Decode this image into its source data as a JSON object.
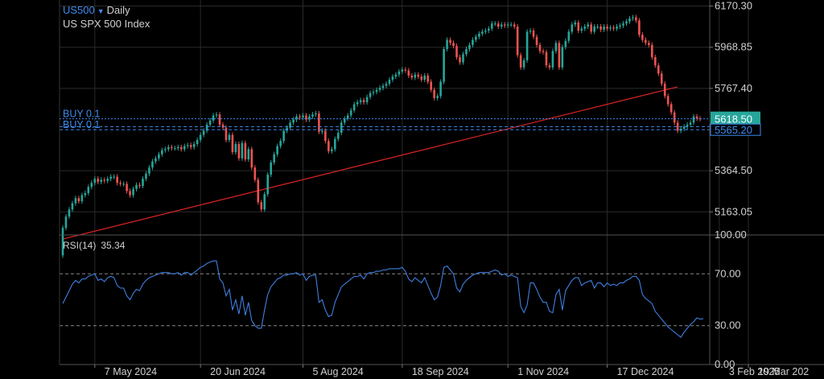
{
  "header": {
    "symbol": "US500",
    "timeframe": "Daily",
    "instrument_name": "US SPX 500 Index"
  },
  "colors": {
    "up": "#26a69a",
    "down": "#ef5350",
    "ma": "#e02424",
    "rsi": "#3f7fe0",
    "order_line": "#3f8cf0",
    "price_tag": "#26a69a",
    "grid": "#2a2a2a"
  },
  "price_axis_labels": [
    "6170.30",
    "5968.85",
    "5767.40",
    "5364.50",
    "5163.05"
  ],
  "price_tag": "5618.50",
  "order_tag": "5565.20",
  "orders": [
    {
      "label": "BUY 0.1",
      "price": 5618.5
    },
    {
      "label": "BUY 0.1",
      "price": 5565.2
    },
    {
      "label": "BUY 0.1",
      "price": 5580.0
    }
  ],
  "rsi_panel": {
    "title": "RSI(14)",
    "value": "35.34",
    "axis_labels": [
      "100.00",
      "70.00",
      "30.00",
      "0.00"
    ],
    "levels": [
      70,
      30
    ]
  },
  "x_axis_labels": [
    "7 May 2024",
    "20 Jun 2024",
    "5 Aug 2024",
    "18 Sep 2024",
    "1 Nov 2024",
    "17 Dec 2024",
    "3 Feb 2025",
    "19 Mar 202"
  ],
  "chart_data": {
    "type": "candlestick",
    "ylim": [
      5050,
      6200
    ],
    "rsi_ylim": [
      0,
      100
    ],
    "ma_line": {
      "start": [
        0,
        5030
      ],
      "end": [
        192,
        5775
      ]
    },
    "candles": [
      [
        4950,
        5085
      ],
      [
        5085,
        5140
      ],
      [
        5140,
        5175
      ],
      [
        5175,
        5205
      ],
      [
        5205,
        5230
      ],
      [
        5230,
        5215
      ],
      [
        5215,
        5245
      ],
      [
        5245,
        5255
      ],
      [
        5255,
        5285
      ],
      [
        5285,
        5305
      ],
      [
        5305,
        5325
      ],
      [
        5325,
        5310
      ],
      [
        5310,
        5320
      ],
      [
        5320,
        5315
      ],
      [
        5315,
        5325
      ],
      [
        5325,
        5335
      ],
      [
        5335,
        5335
      ],
      [
        5335,
        5305
      ],
      [
        5305,
        5300
      ],
      [
        5300,
        5300
      ],
      [
        5300,
        5265
      ],
      [
        5265,
        5245
      ],
      [
        5245,
        5275
      ],
      [
        5275,
        5295
      ],
      [
        5295,
        5290
      ],
      [
        5290,
        5325
      ],
      [
        5325,
        5350
      ],
      [
        5350,
        5380
      ],
      [
        5380,
        5410
      ],
      [
        5410,
        5425
      ],
      [
        5425,
        5445
      ],
      [
        5445,
        5465
      ],
      [
        5465,
        5470
      ],
      [
        5470,
        5480
      ],
      [
        5480,
        5475
      ],
      [
        5475,
        5475
      ],
      [
        5475,
        5480
      ],
      [
        5480,
        5470
      ],
      [
        5470,
        5485
      ],
      [
        5485,
        5490
      ],
      [
        5490,
        5480
      ],
      [
        5480,
        5495
      ],
      [
        5495,
        5515
      ],
      [
        5515,
        5540
      ],
      [
        5540,
        5560
      ],
      [
        5560,
        5590
      ],
      [
        5590,
        5610
      ],
      [
        5610,
        5635
      ],
      [
        5635,
        5640
      ],
      [
        5640,
        5590
      ],
      [
        5590,
        5575
      ],
      [
        5575,
        5515
      ],
      [
        5515,
        5540
      ],
      [
        5540,
        5455
      ],
      [
        5455,
        5495
      ],
      [
        5495,
        5425
      ],
      [
        5425,
        5500
      ],
      [
        5500,
        5420
      ],
      [
        5420,
        5470
      ],
      [
        5470,
        5380
      ],
      [
        5380,
        5320
      ],
      [
        5320,
        5210
      ],
      [
        5210,
        5175
      ],
      [
        5175,
        5250
      ],
      [
        5250,
        5345
      ],
      [
        5345,
        5405
      ],
      [
        5405,
        5445
      ],
      [
        5445,
        5485
      ],
      [
        5485,
        5510
      ],
      [
        5510,
        5560
      ],
      [
        5560,
        5575
      ],
      [
        5575,
        5600
      ],
      [
        5600,
        5615
      ],
      [
        5615,
        5630
      ],
      [
        5630,
        5625
      ],
      [
        5625,
        5635
      ],
      [
        5635,
        5615
      ],
      [
        5615,
        5630
      ],
      [
        5630,
        5640
      ],
      [
        5640,
        5645
      ],
      [
        5645,
        5555
      ],
      [
        5555,
        5560
      ],
      [
        5560,
        5510
      ],
      [
        5510,
        5460
      ],
      [
        5460,
        5470
      ],
      [
        5470,
        5520
      ],
      [
        5520,
        5550
      ],
      [
        5550,
        5600
      ],
      [
        5600,
        5620
      ],
      [
        5620,
        5635
      ],
      [
        5635,
        5660
      ],
      [
        5660,
        5690
      ],
      [
        5690,
        5700
      ],
      [
        5700,
        5710
      ],
      [
        5710,
        5700
      ],
      [
        5700,
        5725
      ],
      [
        5725,
        5745
      ],
      [
        5745,
        5750
      ],
      [
        5750,
        5760
      ],
      [
        5760,
        5770
      ],
      [
        5770,
        5780
      ],
      [
        5780,
        5790
      ],
      [
        5790,
        5810
      ],
      [
        5810,
        5825
      ],
      [
        5825,
        5835
      ],
      [
        5835,
        5850
      ],
      [
        5850,
        5860
      ],
      [
        5860,
        5855
      ],
      [
        5855,
        5830
      ],
      [
        5830,
        5820
      ],
      [
        5820,
        5835
      ],
      [
        5835,
        5825
      ],
      [
        5825,
        5810
      ],
      [
        5810,
        5830
      ],
      [
        5830,
        5800
      ],
      [
        5800,
        5760
      ],
      [
        5760,
        5720
      ],
      [
        5720,
        5730
      ],
      [
        5730,
        5800
      ],
      [
        5800,
        5960
      ],
      [
        5960,
        6005
      ],
      [
        6005,
        5990
      ],
      [
        5990,
        5975
      ],
      [
        5975,
        5920
      ],
      [
        5920,
        5895
      ],
      [
        5895,
        5935
      ],
      [
        5935,
        5960
      ],
      [
        5960,
        5980
      ],
      [
        5980,
        6005
      ],
      [
        6005,
        6020
      ],
      [
        6020,
        6035
      ],
      [
        6035,
        6045
      ],
      [
        6045,
        6050
      ],
      [
        6050,
        6060
      ],
      [
        6060,
        6085
      ],
      [
        6085,
        6085
      ],
      [
        6085,
        6070
      ],
      [
        6070,
        6080
      ],
      [
        6080,
        6075
      ],
      [
        6075,
        6080
      ],
      [
        6080,
        6080
      ],
      [
        6080,
        6070
      ],
      [
        6070,
        5930
      ],
      [
        5930,
        5870
      ],
      [
        5870,
        5905
      ],
      [
        5905,
        6045
      ],
      [
        6045,
        6050
      ],
      [
        6050,
        6020
      ],
      [
        6020,
        5980
      ],
      [
        5980,
        5950
      ],
      [
        5950,
        5945
      ],
      [
        5945,
        5880
      ],
      [
        5880,
        5870
      ],
      [
        5870,
        5950
      ],
      [
        5950,
        5990
      ],
      [
        5990,
        5870
      ],
      [
        5870,
        5970
      ],
      [
        5970,
        6000
      ],
      [
        6000,
        6045
      ],
      [
        6045,
        6080
      ],
      [
        6080,
        6090
      ],
      [
        6090,
        6050
      ],
      [
        6050,
        6060
      ],
      [
        6060,
        6070
      ],
      [
        6070,
        6080
      ],
      [
        6080,
        6045
      ],
      [
        6045,
        6070
      ],
      [
        6070,
        6070
      ],
      [
        6070,
        6055
      ],
      [
        6055,
        6070
      ],
      [
        6070,
        6060
      ],
      [
        6060,
        6065
      ],
      [
        6065,
        6060
      ],
      [
        6060,
        6070
      ],
      [
        6070,
        6075
      ],
      [
        6075,
        6085
      ],
      [
        6085,
        6095
      ],
      [
        6095,
        6110
      ],
      [
        6110,
        6115
      ],
      [
        6115,
        6100
      ],
      [
        6100,
        6030
      ],
      [
        6030,
        6005
      ],
      [
        6005,
        5990
      ],
      [
        5990,
        5980
      ],
      [
        5980,
        5920
      ],
      [
        5920,
        5880
      ],
      [
        5880,
        5840
      ],
      [
        5840,
        5790
      ],
      [
        5790,
        5730
      ],
      [
        5730,
        5690
      ],
      [
        5690,
        5650
      ],
      [
        5650,
        5600
      ],
      [
        5600,
        5560
      ],
      [
        5560,
        5570
      ],
      [
        5570,
        5580
      ],
      [
        5580,
        5590
      ],
      [
        5590,
        5600
      ],
      [
        5600,
        5630
      ],
      [
        5630,
        5620
      ],
      [
        5620,
        5618.5
      ]
    ],
    "rsi": [
      47,
      52,
      57,
      62,
      65,
      63,
      66,
      66,
      68,
      69,
      70,
      65,
      66,
      64,
      67,
      68,
      67,
      61,
      59,
      59,
      53,
      50,
      55,
      58,
      57,
      62,
      65,
      67,
      68,
      69,
      70,
      71,
      71,
      71,
      70,
      70,
      71,
      69,
      71,
      71,
      69,
      71,
      73,
      75,
      76,
      78,
      79,
      80,
      80,
      66,
      63,
      53,
      58,
      42,
      50,
      39,
      53,
      38,
      48,
      34,
      30,
      28,
      28,
      42,
      54,
      60,
      63,
      66,
      67,
      69,
      69,
      70,
      70,
      71,
      69,
      70,
      65,
      68,
      69,
      69,
      48,
      50,
      42,
      37,
      38,
      48,
      54,
      60,
      62,
      64,
      66,
      68,
      68,
      69,
      66,
      70,
      71,
      71,
      72,
      72,
      73,
      73,
      74,
      74,
      74,
      74,
      75,
      72,
      66,
      64,
      67,
      65,
      63,
      67,
      61,
      55,
      50,
      52,
      61,
      75,
      76,
      73,
      70,
      59,
      56,
      62,
      65,
      67,
      69,
      70,
      71,
      71,
      71,
      71,
      72,
      73,
      72,
      69,
      70,
      68,
      69,
      68,
      67,
      45,
      40,
      46,
      63,
      63,
      58,
      52,
      48,
      48,
      41,
      40,
      54,
      58,
      42,
      57,
      61,
      65,
      67,
      67,
      61,
      63,
      64,
      65,
      59,
      63,
      63,
      60,
      63,
      61,
      62,
      61,
      63,
      63,
      65,
      66,
      68,
      68,
      65,
      54,
      51,
      49,
      47,
      41,
      38,
      35,
      32,
      29,
      27,
      25,
      23,
      21,
      25,
      28,
      31,
      33,
      36,
      35,
      35.34
    ]
  }
}
